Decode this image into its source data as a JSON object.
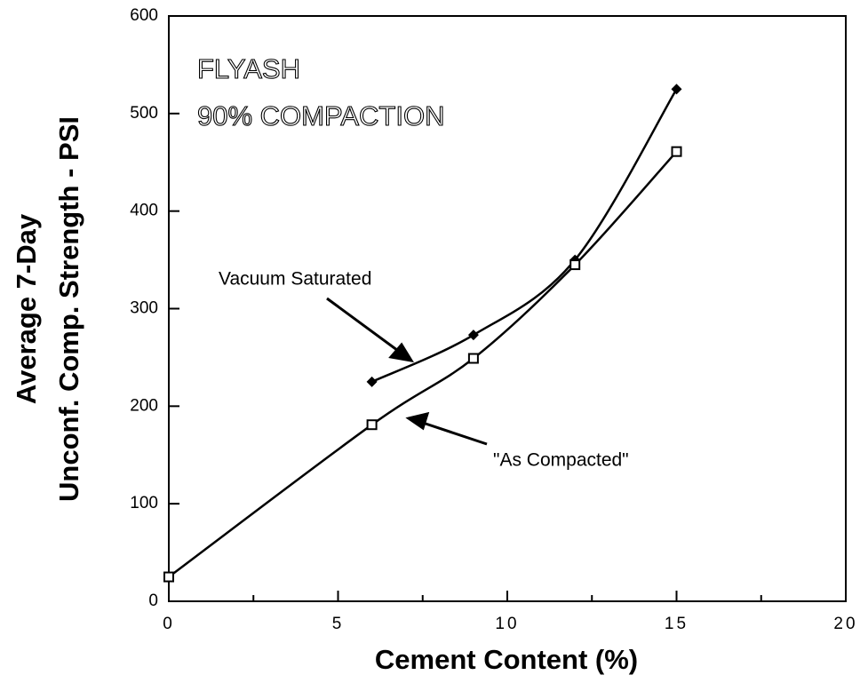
{
  "chart_data": {
    "type": "line",
    "annotations": [
      "FLYASH",
      "90% COMPACTION",
      "Vacuum Saturated",
      "\"As Compacted\""
    ],
    "x_label": "Cement  Content  (%)",
    "y_label": [
      "Average 7-Day",
      "Unconf. Comp. Strength  -  PSI"
    ],
    "series": [
      {
        "name": "Vacuum Saturated",
        "color": "#000",
        "marker": "diamond",
        "x": [
          6,
          9,
          12,
          15
        ],
        "values": [
          225,
          273,
          350,
          525
        ]
      },
      {
        "name": "\"As Compacted\"",
        "color": "#000",
        "marker": "square",
        "x": [
          0,
          6,
          9,
          12,
          15
        ],
        "values": [
          25,
          181,
          249,
          345,
          461
        ]
      }
    ],
    "xlim": [
      0,
      20
    ],
    "xticks": [
      0,
      5,
      10,
      15,
      20
    ],
    "xminorticks": [
      2.5,
      7.5,
      12.5,
      17.5
    ],
    "ylim": [
      0,
      600
    ],
    "yticks": [
      0,
      100,
      200,
      300,
      400,
      500,
      600
    ],
    "grid": false
  }
}
